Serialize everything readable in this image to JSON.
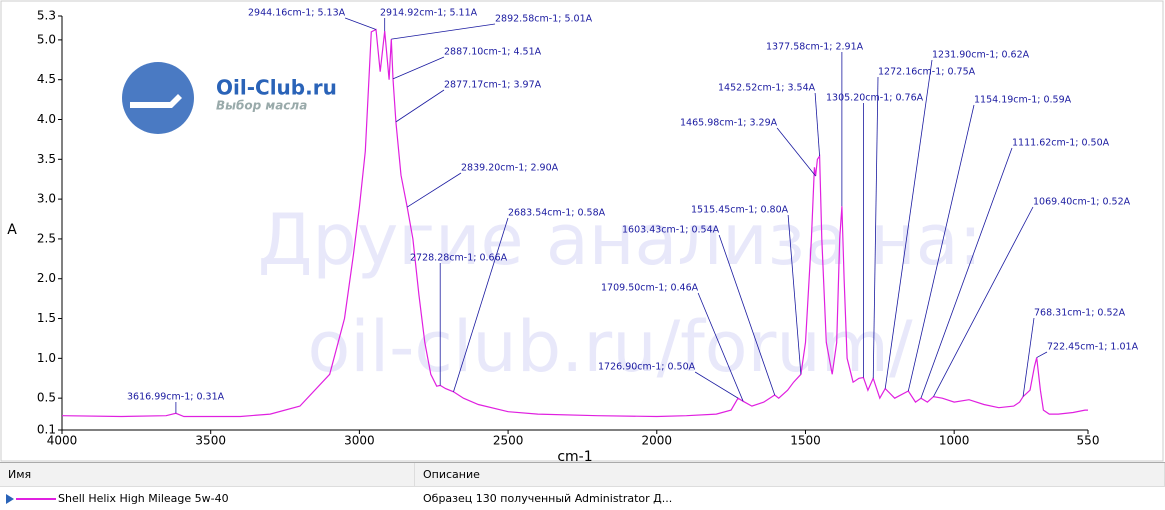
{
  "chart_data": {
    "type": "line",
    "xlabel": "cm-1",
    "ylabel": "A",
    "xlim": [
      4000,
      550
    ],
    "ylim": [
      0.1,
      5.3
    ],
    "xticks": [
      4000,
      3500,
      3000,
      2500,
      2000,
      1500,
      1000,
      550
    ],
    "yticks": [
      0.1,
      0.5,
      {
        "value": 1,
        "label": "1.0"
      },
      1.5,
      {
        "value": 2,
        "label": "2.0"
      },
      2.5,
      {
        "value": 3,
        "label": "3.0"
      },
      3.5,
      {
        "value": 4,
        "label": "4.0"
      },
      4.5,
      {
        "value": 5,
        "label": "5.0"
      },
      5.3
    ],
    "series": [
      {
        "name": "Shell Helix High Mileage 5w-40",
        "color": "#e020e0",
        "x": [
          4000,
          3800,
          3650,
          3616.99,
          3590,
          3400,
          3300,
          3200,
          3100,
          3050,
          3020,
          3000,
          2980,
          2960,
          2944.16,
          2930,
          2914.92,
          2900,
          2892.58,
          2887.1,
          2877.17,
          2860,
          2839.2,
          2820,
          2800,
          2780,
          2760,
          2740,
          2728.28,
          2710,
          2683.54,
          2650,
          2600,
          2500,
          2400,
          2200,
          2000,
          1900,
          1800,
          1750,
          1726.9,
          1709.5,
          1680,
          1640,
          1603.43,
          1590,
          1560,
          1540,
          1515.45,
          1500,
          1480,
          1470,
          1465.98,
          1460,
          1452.52,
          1445,
          1430,
          1410,
          1395,
          1385,
          1377.58,
          1370,
          1360,
          1340,
          1320,
          1305.2,
          1290,
          1272.16,
          1250,
          1231.9,
          1200,
          1154.19,
          1130,
          1111.62,
          1090,
          1069.4,
          1040,
          1000,
          950,
          900,
          850,
          800,
          780,
          768.31,
          745,
          730,
          722.45,
          710,
          700,
          680,
          650,
          600,
          560,
          550
        ],
        "values": [
          0.28,
          0.27,
          0.28,
          0.31,
          0.27,
          0.27,
          0.3,
          0.4,
          0.8,
          1.5,
          2.3,
          2.9,
          3.6,
          5.1,
          5.13,
          4.6,
          5.11,
          4.5,
          5.01,
          4.51,
          3.97,
          3.3,
          2.9,
          2.5,
          1.8,
          1.2,
          0.8,
          0.65,
          0.66,
          0.62,
          0.58,
          0.5,
          0.42,
          0.33,
          0.3,
          0.28,
          0.27,
          0.28,
          0.3,
          0.35,
          0.5,
          0.46,
          0.4,
          0.45,
          0.54,
          0.5,
          0.6,
          0.7,
          0.8,
          1.2,
          2.5,
          3.4,
          3.29,
          3.5,
          3.54,
          2.5,
          1.2,
          0.8,
          1.2,
          2.5,
          2.91,
          2.0,
          1.0,
          0.7,
          0.75,
          0.76,
          0.6,
          0.75,
          0.5,
          0.62,
          0.5,
          0.59,
          0.45,
          0.5,
          0.45,
          0.52,
          0.5,
          0.45,
          0.48,
          0.42,
          0.38,
          0.4,
          0.45,
          0.52,
          0.6,
          0.9,
          1.01,
          0.6,
          0.35,
          0.3,
          0.3,
          0.32,
          0.35,
          0.35
        ]
      }
    ],
    "peaks": {
      "x": [
        3616.99,
        2944.16,
        2914.92,
        2892.58,
        2887.1,
        2877.17,
        2839.2,
        2728.28,
        2683.54,
        1726.9,
        1709.5,
        1603.43,
        1515.45,
        1465.98,
        1452.52,
        1377.58,
        1305.2,
        1272.16,
        1231.9,
        1154.19,
        1111.62,
        1069.4,
        768.31,
        722.45
      ],
      "values": [
        0.31,
        5.13,
        5.11,
        5.01,
        4.51,
        3.97,
        2.9,
        0.66,
        0.58,
        0.5,
        0.46,
        0.54,
        0.8,
        3.29,
        3.54,
        2.91,
        0.76,
        0.75,
        0.62,
        0.59,
        0.5,
        0.52,
        0.52,
        1.01
      ],
      "value_labels": [
        "3616.99cm-1; 0.31A",
        "2944.16cm-1; 5.13A",
        "2914.92cm-1; 5.11A",
        "2892.58cm-1; 5.01A",
        "2887.10cm-1; 4.51A",
        "2877.17cm-1; 3.97A",
        "2839.20cm-1; 2.90A",
        "2728.28cm-1; 0.66A",
        "2683.54cm-1; 0.58A",
        "1726.90cm-1; 0.50A",
        "1709.50cm-1; 0.46A",
        "1603.43cm-1; 0.54A",
        "1515.45cm-1; 0.80A",
        "1465.98cm-1; 3.29A",
        "1452.52cm-1; 3.54A",
        "1377.58cm-1; 2.91A",
        "1305.20cm-1; 0.76A",
        "1272.16cm-1; 0.75A",
        "1231.90cm-1; 0.62A",
        "1154.19cm-1; 0.59A",
        "1111.62cm-1; 0.50A",
        "1069.40cm-1; 0.52A",
        "768.31cm-1; 0.52A",
        "722.45cm-1; 1.01A"
      ]
    }
  },
  "watermark": [
    "Другие анализа на:",
    "oil-club.ru/forum/"
  ],
  "logo": {
    "title": "Oil-Club.ru",
    "subtitle": "Выбор масла"
  },
  "table": {
    "headers": [
      "Имя",
      "Описание"
    ],
    "rows": [
      [
        "Shell Helix High Mileage 5w-40",
        "Образец 130 полученный Administrator Д..."
      ]
    ]
  }
}
